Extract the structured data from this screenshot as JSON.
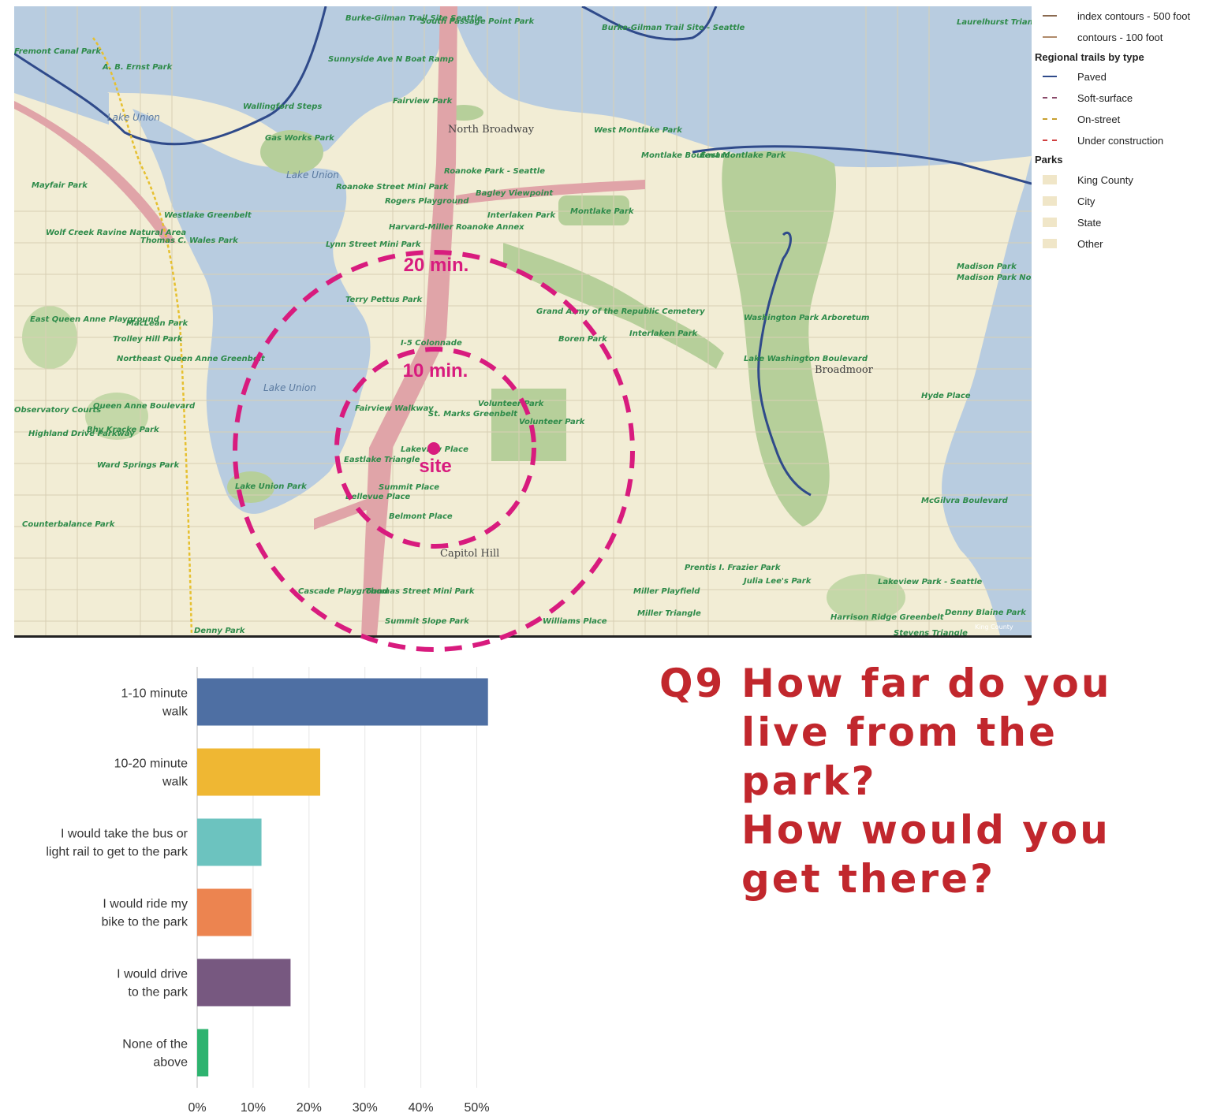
{
  "map": {
    "lake_labels": [
      "Lake Union",
      "Lake Union",
      "Lake Union"
    ],
    "neighborhood_labels": [
      "North Broadway",
      "Capitol Hill",
      "Broadmoor",
      "Madison Park"
    ],
    "park_labels": [
      "Burke-Gilman Trail Site Seattle",
      "South Passage Point Park",
      "Sunnyside Ave N Boat Ramp",
      "Wallingford Steps",
      "Gas Works Park",
      "A. B. Ernst Park",
      "Fairview Park",
      "West Montlake Park",
      "Montlake Boulevard",
      "East Montlake Park",
      "Roanoke Park - Seattle",
      "Bagley Viewpoint",
      "Interlaken Park",
      "Roanoke Street Mini Park",
      "Rogers Playground",
      "Harvard-Miller Roanoke Annex",
      "Montlake Park",
      "Mayfair Park",
      "Westlake Greenbelt",
      "Wolf Creek Ravine Natural Area",
      "Thomas C. Wales Park",
      "Lynn Street Mini Park",
      "Terry Pettus Park",
      "I-5 Colonnade",
      "Grand Army of the Republic Cemetery",
      "Boren Park",
      "Interlaken Park",
      "Washington Park Arboretum",
      "Lake Washington Boulevard",
      "East Queen Anne Playground",
      "MacLean Park",
      "Trolley Hill Park",
      "Northeast Queen Anne Greenbelt",
      "Fairview Walkway",
      "St. Marks Greenbelt",
      "Volunteer Park",
      "Volunteer Park",
      "Lakeview Place",
      "Eastlake Triangle",
      "Summit Place",
      "Bellevue Place",
      "Belmont Place",
      "Observatory Courts",
      "Queen Anne Boulevard",
      "Bhy Kracke Park",
      "Highland Drive Parkway",
      "Ward Springs Park",
      "Lake Union Park",
      "Counterbalance Park",
      "Cascade Playground",
      "Thomas Street Mini Park",
      "Summit Slope Park",
      "Williams Place",
      "Denny Park",
      "Miller Playfield",
      "Miller Triangle",
      "Prentis I. Frazier Park",
      "Julia Lee's Park",
      "Harrison Ridge Greenbelt",
      "Lakeview Park - Seattle",
      "Denny Blaine Park",
      "Stevens Triangle",
      "McGilvra Boulevard",
      "Hyde Place",
      "Madison Park North Beach",
      "Laurelhurst Triangle",
      "Burke-Gilman Trail Site - Seattle",
      "Fremont Canal Park"
    ],
    "overlay": {
      "ring_20_label": "20 min.",
      "ring_10_label": "10 min.",
      "site_label": "site"
    },
    "credit": "King County"
  },
  "legend": {
    "contour_items": [
      {
        "label": "index contours - 500 foot",
        "color": "#8a6a50"
      },
      {
        "label": "contours - 100 foot",
        "color": "#b08a6a"
      }
    ],
    "trails_heading": "Regional trails by type",
    "trail_items": [
      {
        "label": "Paved",
        "color": "#2f4a8a",
        "style": "solid"
      },
      {
        "label": "Soft-surface",
        "color": "#8a4a6a",
        "style": "dashed"
      },
      {
        "label": "On-street",
        "color": "#c8a030",
        "style": "dashed"
      },
      {
        "label": "Under construction",
        "color": "#d04040",
        "style": "dashed"
      }
    ],
    "parks_heading": "Parks",
    "park_items": [
      {
        "label": "King County",
        "color": "#f0e6c8"
      },
      {
        "label": "City",
        "color": "#f0e6c8"
      },
      {
        "label": "State",
        "color": "#f0e6c8"
      },
      {
        "label": "Other",
        "color": "#f0e6c8"
      }
    ]
  },
  "question": {
    "number": "Q9",
    "line1": "How far do you live from the park?",
    "line2": "How would you get there?",
    "color": "#c1272d"
  },
  "chart_data": {
    "type": "bar",
    "orientation": "horizontal",
    "categories": [
      [
        "1-10 minute",
        "walk"
      ],
      [
        "10-20 minute",
        "walk"
      ],
      [
        "I would take the bus or",
        "light rail to get to the park"
      ],
      [
        "I would ride my",
        "bike to the park"
      ],
      [
        "I would drive",
        "to the park"
      ],
      [
        "None of the",
        "above"
      ]
    ],
    "values": [
      52,
      22,
      11.5,
      9.7,
      16.7,
      2
    ],
    "colors": [
      "#4e6fa3",
      "#efb733",
      "#6cc3bf",
      "#ec8450",
      "#775880",
      "#2db36f"
    ],
    "xlim": [
      0,
      55
    ],
    "xticks": [
      0,
      10,
      20,
      30,
      40,
      50
    ],
    "xtick_labels": [
      "0%",
      "10%",
      "20%",
      "30%",
      "40%",
      "50%"
    ],
    "grid": true
  }
}
